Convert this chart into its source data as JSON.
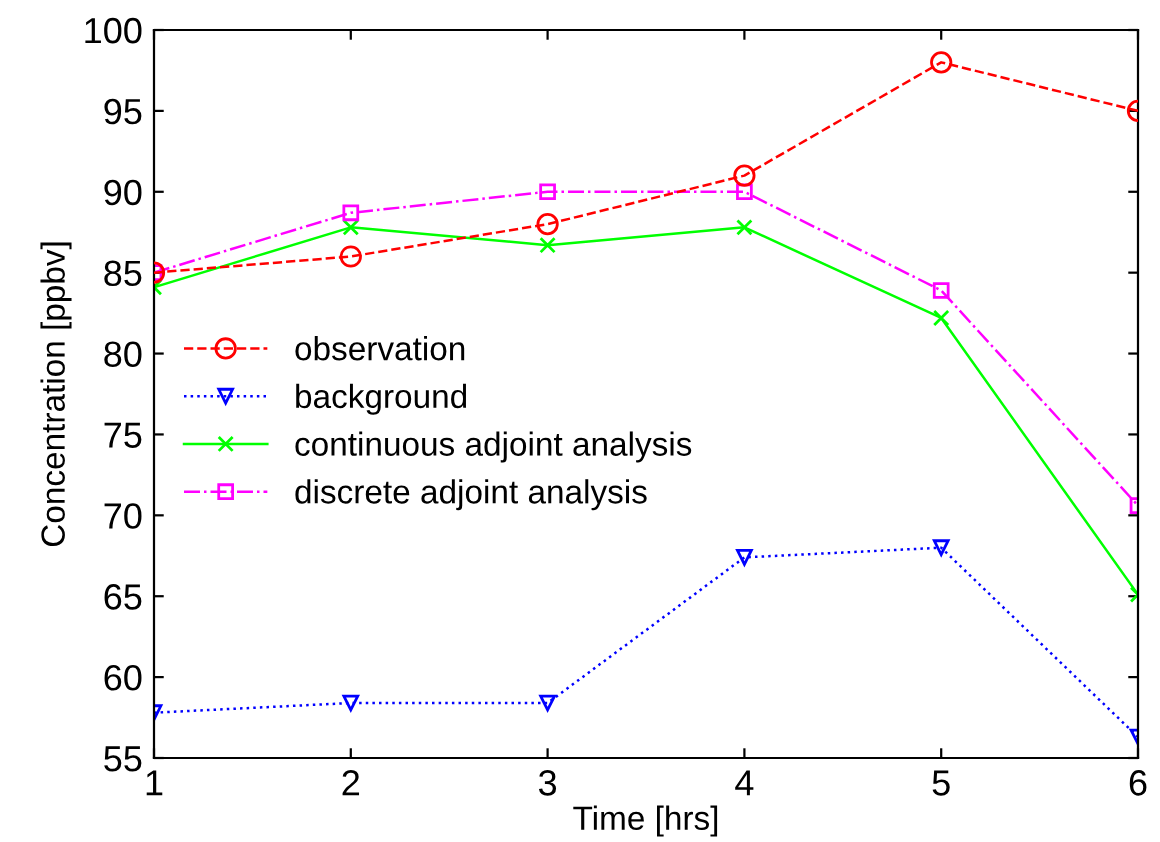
{
  "chart_data": {
    "type": "line",
    "xlabel": "Time [hrs]",
    "ylabel": "Concentration [ppbv]",
    "x": [
      1,
      2,
      3,
      4,
      5,
      6
    ],
    "series": [
      {
        "name": "observation",
        "color": "#ff0000",
        "marker": "circle",
        "line_style": "dashed",
        "values": [
          85,
          86,
          88,
          91,
          98,
          95
        ]
      },
      {
        "name": "background",
        "color": "#0000ff",
        "marker": "triangle",
        "line_style": "dotted",
        "values": [
          57.8,
          58.4,
          58.4,
          67.4,
          68,
          56.3
        ]
      },
      {
        "name": "continuous adjoint analysis",
        "color": "#00ff00",
        "marker": "cross",
        "line_style": "solid",
        "values": [
          84.1,
          87.8,
          86.7,
          87.8,
          82.2,
          65.1
        ]
      },
      {
        "name": "discrete adjoint analysis",
        "color": "#ff00ff",
        "marker": "square",
        "line_style": "dashdot",
        "values": [
          85,
          88.7,
          90,
          90,
          83.9,
          70.6
        ]
      }
    ],
    "xlim": [
      1,
      6
    ],
    "xticks": [
      1,
      2,
      3,
      4,
      5,
      6
    ],
    "ylim": [
      55,
      100
    ],
    "yticks": [
      55,
      60,
      65,
      70,
      75,
      80,
      85,
      90,
      95,
      100
    ],
    "legend": "center left"
  }
}
